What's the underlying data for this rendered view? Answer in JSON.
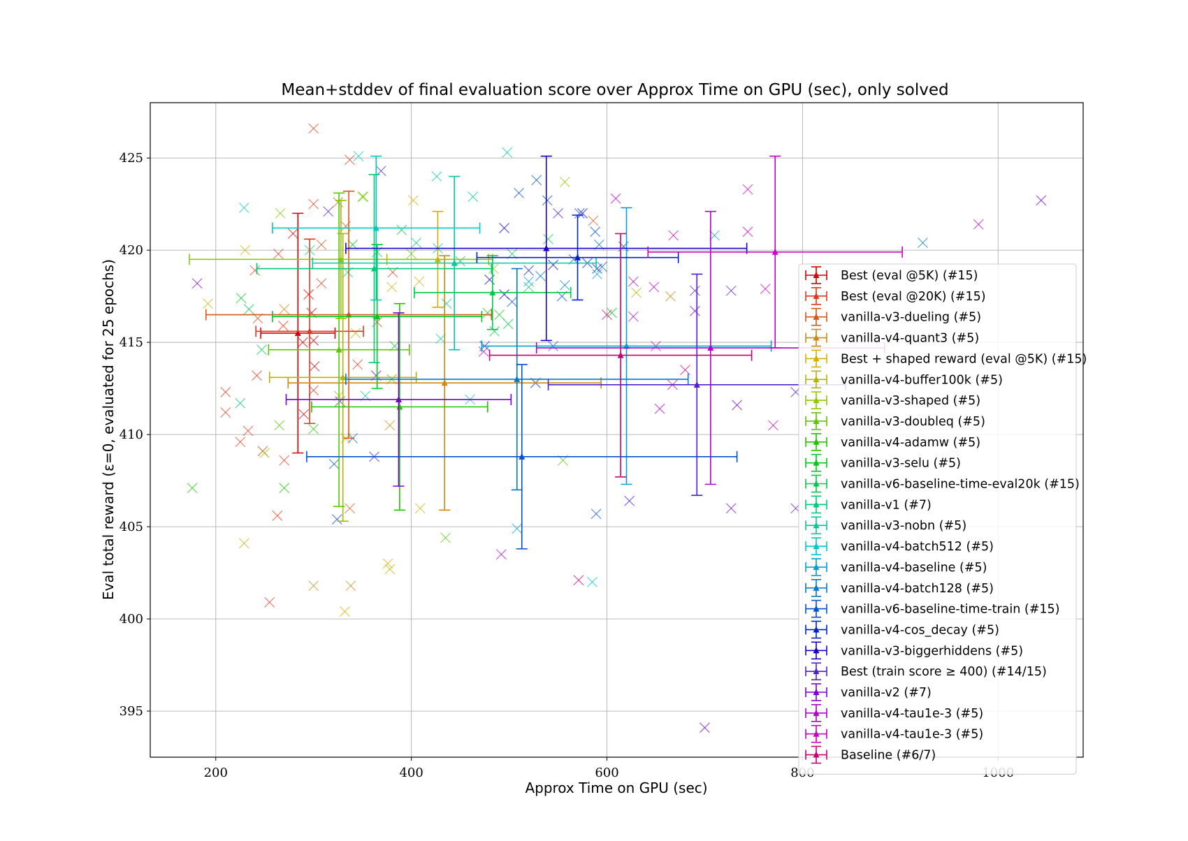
{
  "chart_data": {
    "type": "scatter",
    "title": "Mean+stddev of final evaluation score over Approx Time on GPU (sec), only solved",
    "xlabel": "Approx Time on GPU (sec)",
    "ylabel": "Eval total reward (ε=0, evaluated for 25 epochs)",
    "xlim": [
      133,
      1087
    ],
    "ylim": [
      392.5,
      428
    ],
    "xticks": [
      200,
      400,
      600,
      800,
      1000
    ],
    "yticks": [
      395,
      400,
      405,
      410,
      415,
      420,
      425
    ],
    "grid": true,
    "legend_position": "lower-right",
    "series": [
      {
        "name": "Best (eval @5K) (#15)",
        "color": "#d10000",
        "mean": {
          "x": 284,
          "y": 415.5,
          "xerr": 38,
          "yerr": 6.5
        },
        "points": [
          [
            279,
            420.9
          ],
          [
            295,
            417.6
          ],
          [
            298,
            416.6
          ],
          [
            289,
            415.0
          ],
          [
            301,
            413.7
          ],
          [
            300,
            415.1
          ],
          [
            290,
            411.1
          ]
        ]
      },
      {
        "name": "Best (eval @20K) (#15)",
        "color": "#dc3a1c",
        "mean": {
          "x": 296,
          "y": 415.6,
          "xerr": 55,
          "yerr": 5.0
        },
        "points": [
          [
            300,
            426.6
          ],
          [
            337,
            424.9
          ],
          [
            300,
            422.5
          ],
          [
            264,
            419.8
          ],
          [
            240,
            418.9
          ],
          [
            308,
            418.2
          ],
          [
            243,
            416.3
          ],
          [
            269,
            415.9
          ],
          [
            242,
            413.2
          ],
          [
            210,
            412.3
          ],
          [
            210,
            411.2
          ],
          [
            225,
            409.6
          ],
          [
            233,
            410.2
          ],
          [
            248,
            409.1
          ],
          [
            270,
            408.6
          ],
          [
            263,
            405.6
          ],
          [
            255,
            400.9
          ],
          [
            300,
            412.4
          ],
          [
            381,
            418.8
          ],
          [
            365,
            416.1
          ],
          [
            345,
            413.8
          ]
        ]
      },
      {
        "name": "vanilla-v3-dueling (#5)",
        "color": "#d0581c",
        "mean": {
          "x": 336,
          "y": 416.5,
          "xerr": 146,
          "yerr": 6.7
        },
        "points": [
          [
            333,
            421.3
          ],
          [
            337,
            406.0
          ],
          [
            586,
            421.6
          ],
          [
            308,
            420.3
          ],
          [
            325,
            422.6
          ]
        ]
      },
      {
        "name": "vanilla-v4-quant3 (#5)",
        "color": "#cc8a10",
        "mean": {
          "x": 434,
          "y": 412.8,
          "xerr": 160,
          "yerr": 6.9
        },
        "points": [
          [
            338,
            401.8
          ],
          [
            270,
            416.8
          ],
          [
            378,
            410.5
          ],
          [
            665,
            417.5
          ],
          [
            300,
            401.8
          ]
        ]
      },
      {
        "name": "Best + shaped reward (eval @5K) (#15)",
        "color": "#d1b000",
        "mean": {
          "x": 427,
          "y": 419.5,
          "xerr": 52,
          "yerr": 2.6
        },
        "points": [
          [
            230,
            420.0
          ],
          [
            192,
            417.1
          ],
          [
            332,
            400.4
          ],
          [
            376,
            403.0
          ],
          [
            409,
            406.0
          ],
          [
            380,
            418.0
          ],
          [
            402,
            422.7
          ],
          [
            408,
            418.3
          ],
          [
            333,
            409.8
          ]
        ]
      },
      {
        "name": "vanilla-v4-buffer100k (#5)",
        "color": "#b4b400",
        "mean": {
          "x": 330,
          "y": 413.1,
          "xerr": 75,
          "yerr": 7.8
        },
        "points": [
          [
            229,
            404.1
          ],
          [
            378,
            402.7
          ],
          [
            343,
            415.5
          ],
          [
            630,
            417.7
          ],
          [
            326,
            412.1
          ]
        ]
      },
      {
        "name": "vanilla-v3-shaped (#5)",
        "color": "#8ec800",
        "mean": {
          "x": 328,
          "y": 419.5,
          "xerr": 155,
          "yerr": 3.2
        },
        "points": [
          [
            266,
            422.0
          ],
          [
            351,
            422.9
          ],
          [
            557,
            423.7
          ],
          [
            484,
            419.0
          ],
          [
            250,
            409.0
          ]
        ]
      },
      {
        "name": "vanilla-v3-doubleq (#5)",
        "color": "#5ac800",
        "mean": {
          "x": 326,
          "y": 414.6,
          "xerr": 72,
          "yerr": 8.5
        },
        "points": [
          [
            265,
            410.5
          ],
          [
            350,
            422.9
          ],
          [
            555,
            408.6
          ],
          [
            400,
            419.8
          ],
          [
            435,
            404.4
          ]
        ]
      },
      {
        "name": "vanilla-v4-adamw (#5)",
        "color": "#22c200",
        "mean": {
          "x": 388,
          "y": 411.5,
          "xerr": 90,
          "yerr": 5.6
        },
        "points": [
          [
            176,
            407.1
          ],
          [
            270,
            407.1
          ],
          [
            300,
            410.3
          ],
          [
            380,
            413.0
          ],
          [
            478,
            416.6
          ]
        ]
      },
      {
        "name": "vanilla-v3-selu (#5)",
        "color": "#00c81c",
        "mean": {
          "x": 365,
          "y": 416.4,
          "xerr": 107,
          "yerr": 3.9
        },
        "points": [
          [
            226,
            417.4
          ],
          [
            340,
            420.3
          ],
          [
            490,
            416.5
          ],
          [
            605,
            416.6
          ],
          [
            383,
            414.8
          ]
        ]
      },
      {
        "name": "vanilla-v6-baseline-time-eval20k (#15)",
        "color": "#00c84a",
        "mean": {
          "x": 483,
          "y": 417.7,
          "xerr": 80,
          "yerr": 2.0
        },
        "points": [
          [
            234,
            416.8
          ],
          [
            247,
            414.6
          ],
          [
            365,
            419.9
          ],
          [
            499,
            416.0
          ],
          [
            503,
            419.8
          ],
          [
            390,
            421.1
          ],
          [
            485,
            415.6
          ],
          [
            540,
            420.6
          ]
        ]
      },
      {
        "name": "vanilla-v1 (#7)",
        "color": "#00c878",
        "mean": {
          "x": 362,
          "y": 419.0,
          "xerr": 120,
          "yerr": 5.1
        },
        "points": [
          [
            296,
            420.0
          ],
          [
            335,
            418.8
          ],
          [
            450,
            419.4
          ],
          [
            520,
            418.0
          ],
          [
            436,
            417.1
          ],
          [
            405,
            420.4
          ],
          [
            225,
            411.7
          ]
        ]
      },
      {
        "name": "vanilla-v3-nobn (#5)",
        "color": "#00c8a0",
        "mean": {
          "x": 444,
          "y": 419.3,
          "xerr": 145,
          "yerr": 4.7
        },
        "points": [
          [
            426,
            424.0
          ],
          [
            498,
            425.3
          ],
          [
            463,
            422.9
          ],
          [
            427,
            420.1
          ],
          [
            353,
            412.1
          ]
        ]
      },
      {
        "name": "vanilla-v4-batch512 (#5)",
        "color": "#00c8c0",
        "mean": {
          "x": 364,
          "y": 421.2,
          "xerr": 106,
          "yerr": 3.9
        },
        "points": [
          [
            346,
            425.1
          ],
          [
            229,
            422.3
          ],
          [
            430,
            415.2
          ],
          [
            460,
            411.9
          ],
          [
            585,
            402.0
          ]
        ]
      },
      {
        "name": "vanilla-v4-baseline (#5)",
        "color": "#00a0d0",
        "mean": {
          "x": 620,
          "y": 414.8,
          "xerr": 148,
          "yerr": 7.5
        },
        "points": [
          [
            520,
            418.3
          ],
          [
            590,
            418.7
          ],
          [
            710,
            420.8
          ],
          [
            508,
            404.9
          ],
          [
            802,
            417.3
          ]
        ]
      },
      {
        "name": "vanilla-v4-batch128 (#5)",
        "color": "#0078d0",
        "mean": {
          "x": 508,
          "y": 413.0,
          "xerr": 175,
          "yerr": 6.0
        },
        "points": [
          [
            340,
            409.8
          ],
          [
            532,
            418.6
          ],
          [
            557,
            418.1
          ],
          [
            592,
            420.3
          ],
          [
            923,
            420.4
          ]
        ]
      },
      {
        "name": "vanilla-v6-baseline-time-train (#15)",
        "color": "#0050d0",
        "mean": {
          "x": 513,
          "y": 408.8,
          "xerr": 220,
          "yerr": 5.0
        },
        "points": [
          [
            321,
            408.4
          ],
          [
            324,
            405.4
          ],
          [
            503,
            417.2
          ],
          [
            510,
            423.1
          ],
          [
            528,
            423.8
          ],
          [
            539,
            422.7
          ],
          [
            545,
            414.8
          ],
          [
            554,
            417.5
          ],
          [
            566,
            419.5
          ],
          [
            572,
            422.0
          ],
          [
            588,
            421.0
          ],
          [
            589,
            405.7
          ],
          [
            595,
            419.1
          ],
          [
            617,
            420.2
          ]
        ]
      },
      {
        "name": "vanilla-v4-cos_decay (#5)",
        "color": "#0020d0",
        "mean": {
          "x": 570,
          "y": 419.6,
          "xerr": 103,
          "yerr": 2.3
        },
        "points": [
          [
            475,
            414.8
          ],
          [
            527,
            412.8
          ],
          [
            580,
            419.3
          ],
          [
            590,
            419.0
          ],
          [
            520,
            418.9
          ]
        ]
      },
      {
        "name": "vanilla-v3-biggerhiddens (#5)",
        "color": "#1800c8",
        "mean": {
          "x": 538,
          "y": 420.1,
          "xerr": 205,
          "yerr": 5.0
        },
        "points": [
          [
            495,
            421.2
          ],
          [
            575,
            422.0
          ],
          [
            495,
            417.6
          ],
          [
            545,
            419.2
          ],
          [
            480,
            418.4
          ]
        ]
      },
      {
        "name": "Best (train score ≥ 400) (#14/15)",
        "color": "#5020c8",
        "mean": {
          "x": 692,
          "y": 412.7,
          "xerr": 152,
          "yerr": 6.0
        },
        "points": [
          [
            315,
            422.1
          ],
          [
            327,
            411.8
          ],
          [
            362,
            408.8
          ],
          [
            369,
            424.3
          ],
          [
            550,
            422.0
          ],
          [
            690,
            417.8
          ],
          [
            727,
            417.8
          ],
          [
            793,
            412.3
          ],
          [
            793,
            406.0
          ],
          [
            623,
            406.4
          ]
        ]
      },
      {
        "name": "vanilla-v2 (#7)",
        "color": "#7a00d0",
        "mean": {
          "x": 387,
          "y": 411.9,
          "xerr": 115,
          "yerr": 4.7
        },
        "points": [
          [
            181,
            418.2
          ],
          [
            364,
            413.2
          ],
          [
            700,
            394.1
          ],
          [
            727,
            406.0
          ],
          [
            733,
            411.6
          ],
          [
            1044,
            422.7
          ],
          [
            690,
            416.7
          ]
        ]
      },
      {
        "name": "vanilla-v4-tau1e-3 (#5)",
        "color": "#b000c8",
        "mean": {
          "x": 706,
          "y": 414.7,
          "xerr": 178,
          "yerr": 7.4
        },
        "points": [
          [
            474,
            414.5
          ],
          [
            627,
            418.3
          ],
          [
            648,
            418.0
          ],
          [
            654,
            411.4
          ],
          [
            492,
            403.5
          ]
        ]
      },
      {
        "name": "vanilla-v4-tau1e-3 (#5)",
        "color": "#c800c0",
        "mean": {
          "x": 772,
          "y": 419.9,
          "xerr": 130,
          "yerr": 5.2
        },
        "points": [
          [
            609,
            422.8
          ],
          [
            744,
            423.3
          ],
          [
            744,
            421.0
          ],
          [
            980,
            421.4
          ],
          [
            762,
            417.9
          ],
          [
            668,
            420.8
          ],
          [
            627,
            416.4
          ],
          [
            650,
            414.8
          ],
          [
            770,
            410.5
          ]
        ]
      },
      {
        "name": "Baseline (#6/7)",
        "color": "#c80078",
        "mean": {
          "x": 614,
          "y": 414.3,
          "xerr": 134,
          "yerr": 6.6
        },
        "points": [
          [
            571,
            402.1
          ],
          [
            667,
            412.7
          ],
          [
            600,
            416.5
          ],
          [
            680,
            413.5
          ]
        ]
      }
    ]
  }
}
